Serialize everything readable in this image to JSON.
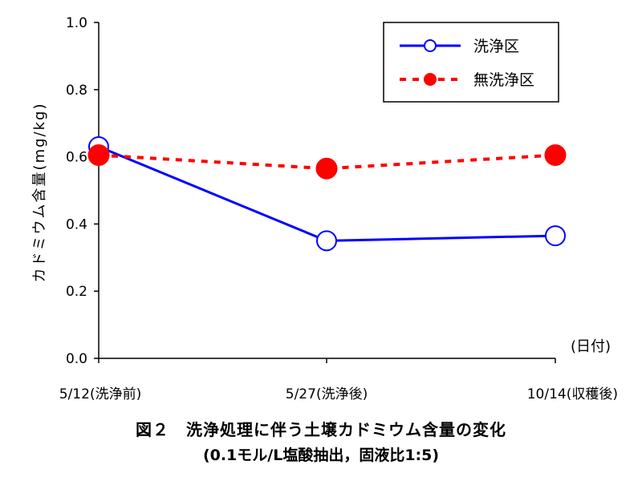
{
  "chart_data": {
    "type": "line",
    "categories": [
      "5/12(洗浄前)",
      "5/27(洗浄後)",
      "10/14(収穫後)"
    ],
    "series": [
      {
        "name": "洗浄区",
        "values": [
          0.63,
          0.35,
          0.365
        ],
        "color": "#0000ff",
        "style": "solid",
        "marker": "open-circle"
      },
      {
        "name": "無洗浄区",
        "values": [
          0.605,
          0.565,
          0.605
        ],
        "color": "#ff0000",
        "style": "dashed",
        "marker": "filled-circle"
      }
    ],
    "ylabel": "カドミウム含量(mg/kg)",
    "xunit": "(日付)",
    "ylim": [
      0,
      1.0
    ],
    "yticks": [
      "0.0",
      "0.2",
      "0.4",
      "0.6",
      "0.8",
      "1.0"
    ],
    "grid": false,
    "legend_position": "top-right"
  },
  "caption": {
    "title": "図２　洗浄処理に伴う土壌カドミウム含量の変化",
    "subtitle": "(0.1モル/L塩酸抽出，固液比1:5)"
  }
}
